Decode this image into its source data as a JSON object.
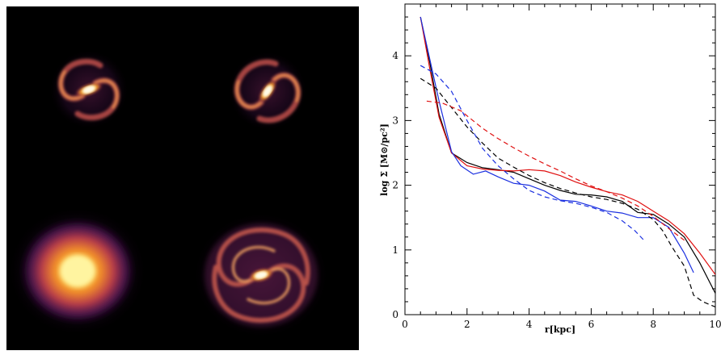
{
  "images": [
    {
      "label": "",
      "kind": "barred-spiral-small"
    },
    {
      "label": "",
      "kind": "barred-spiral-small"
    },
    {
      "label": "",
      "kind": "smooth-disk"
    },
    {
      "label": "",
      "kind": "barred-spiral-large"
    }
  ],
  "colors": {
    "black": "#000000",
    "red": "#e01010",
    "blue": "#1a2fe0"
  },
  "chart_data": {
    "type": "line",
    "title": "",
    "xlabel": "r[kpc]",
    "ylabel": "log Σ [M⊙/pc²]",
    "xlim": [
      0,
      10
    ],
    "ylim": [
      0,
      4.8
    ],
    "xticks": [
      0,
      2,
      4,
      6,
      8,
      10
    ],
    "yticks": [
      0,
      1,
      2,
      3,
      4
    ],
    "grid": false,
    "series": [
      {
        "color": "black",
        "dash": "solid",
        "x": [
          0.5,
          0.8,
          1.1,
          1.5,
          2.0,
          2.5,
          3.0,
          3.5,
          4.0,
          4.5,
          5.0,
          5.5,
          6.0,
          6.5,
          7.0,
          7.5,
          8.0,
          8.5,
          9.0,
          9.5,
          10.0
        ],
        "y": [
          4.6,
          3.9,
          3.1,
          2.5,
          2.35,
          2.27,
          2.24,
          2.2,
          2.1,
          2.0,
          1.92,
          1.86,
          1.85,
          1.82,
          1.75,
          1.58,
          1.55,
          1.4,
          1.2,
          0.8,
          0.33
        ]
      },
      {
        "color": "red",
        "dash": "solid",
        "x": [
          0.5,
          0.8,
          1.1,
          1.5,
          2.0,
          2.5,
          3.0,
          3.5,
          4.0,
          4.5,
          5.0,
          5.5,
          6.0,
          6.5,
          7.0,
          7.5,
          8.0,
          8.5,
          9.0,
          9.5,
          10.0
        ],
        "y": [
          4.6,
          3.8,
          3.05,
          2.5,
          2.3,
          2.25,
          2.23,
          2.22,
          2.24,
          2.22,
          2.15,
          2.05,
          1.97,
          1.9,
          1.85,
          1.75,
          1.6,
          1.45,
          1.25,
          0.95,
          0.62
        ]
      },
      {
        "color": "blue",
        "dash": "solid",
        "x": [
          0.5,
          0.8,
          1.1,
          1.5,
          1.8,
          2.2,
          2.6,
          3.0,
          3.5,
          4.0,
          4.5,
          5.0,
          5.5,
          6.0,
          6.5,
          7.0,
          7.5,
          8.0,
          8.5,
          9.0,
          9.3
        ],
        "y": [
          4.6,
          3.95,
          3.3,
          2.52,
          2.3,
          2.17,
          2.22,
          2.13,
          2.03,
          2.0,
          1.91,
          1.77,
          1.75,
          1.68,
          1.6,
          1.57,
          1.5,
          1.5,
          1.35,
          0.95,
          0.65
        ]
      },
      {
        "color": "black",
        "dash": "dashed",
        "x": [
          0.5,
          1.0,
          1.5,
          2.0,
          2.5,
          3.0,
          3.5,
          4.0,
          4.5,
          5.0,
          5.5,
          6.0,
          6.5,
          7.0,
          7.5,
          8.0,
          8.3,
          8.6,
          9.0,
          9.3,
          9.6,
          10.0
        ],
        "y": [
          3.65,
          3.5,
          3.2,
          2.9,
          2.65,
          2.42,
          2.28,
          2.15,
          2.04,
          1.95,
          1.88,
          1.82,
          1.78,
          1.72,
          1.63,
          1.47,
          1.3,
          1.05,
          0.75,
          0.3,
          0.2,
          0.12
        ]
      },
      {
        "color": "red",
        "dash": "dashed",
        "x": [
          0.7,
          1.2,
          1.8,
          2.5,
          3.0,
          3.5,
          4.0,
          4.5,
          5.0,
          5.5,
          6.0,
          6.5,
          7.0,
          7.5,
          8.0,
          8.5,
          9.0
        ],
        "y": [
          3.3,
          3.27,
          3.15,
          2.88,
          2.72,
          2.58,
          2.45,
          2.33,
          2.22,
          2.1,
          1.99,
          1.9,
          1.8,
          1.68,
          1.52,
          1.33,
          1.15
        ]
      },
      {
        "color": "blue",
        "dash": "dashed",
        "x": [
          0.5,
          1.0,
          1.5,
          2.0,
          2.5,
          3.0,
          3.5,
          4.0,
          4.5,
          5.0,
          5.5,
          6.0,
          6.5,
          7.0,
          7.4,
          7.7
        ],
        "y": [
          3.85,
          3.72,
          3.45,
          3.0,
          2.57,
          2.3,
          2.1,
          1.92,
          1.82,
          1.76,
          1.72,
          1.66,
          1.58,
          1.45,
          1.3,
          1.15
        ]
      }
    ]
  }
}
